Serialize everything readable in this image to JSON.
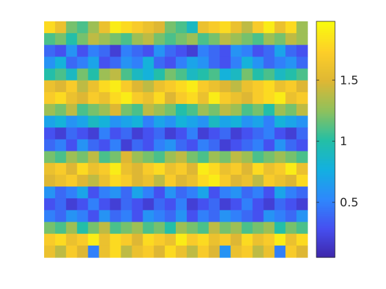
{
  "chart_data": {
    "type": "heatmap",
    "title": "",
    "xlabel": "",
    "ylabel": "",
    "axes_visible": false,
    "colormap": "parula",
    "clim": [
      0.05,
      1.98
    ],
    "colorbar": {
      "location": "right",
      "ticks": [
        0.5,
        1,
        1.5
      ],
      "tick_labels": [
        "0.5",
        "1",
        "1.5"
      ]
    },
    "grid_size": {
      "rows": 20,
      "cols": 24
    },
    "values": [
      [
        1.8,
        1.6,
        1.2,
        1.1,
        1.3,
        1.6,
        1.9,
        1.8,
        1.7,
        1.6,
        1.5,
        1.2,
        1.1,
        0.9,
        1.6,
        1.7,
        1.8,
        1.6,
        1.4,
        1.7,
        1.9,
        1.6,
        1.8,
        1.3
      ],
      [
        1.1,
        1.2,
        1.0,
        1.2,
        1.4,
        1.3,
        1.2,
        1.1,
        1.3,
        1.4,
        1.2,
        1.1,
        1.2,
        1.3,
        1.1,
        1.2,
        1.4,
        1.3,
        1.2,
        1.1,
        1.3,
        1.2,
        1.4,
        1.3
      ],
      [
        0.4,
        0.3,
        0.6,
        0.3,
        0.5,
        0.4,
        0.2,
        0.5,
        0.4,
        0.3,
        0.6,
        0.4,
        0.3,
        0.2,
        0.5,
        0.4,
        0.3,
        0.6,
        0.5,
        0.3,
        0.4,
        0.7,
        0.4,
        0.3
      ],
      [
        0.6,
        0.8,
        0.4,
        0.5,
        0.7,
        0.3,
        0.4,
        0.6,
        0.5,
        0.8,
        0.4,
        0.3,
        0.5,
        0.7,
        0.6,
        0.4,
        0.3,
        0.5,
        0.8,
        0.6,
        0.4,
        0.5,
        0.6,
        0.4
      ],
      [
        1.0,
        1.1,
        0.9,
        1.2,
        1.0,
        1.3,
        1.4,
        1.1,
        0.9,
        0.8,
        1.0,
        1.2,
        1.1,
        0.9,
        1.0,
        1.1,
        0.8,
        0.9,
        1.2,
        1.0,
        1.1,
        0.9,
        1.0,
        1.1
      ],
      [
        1.6,
        1.5,
        1.7,
        1.4,
        1.6,
        1.8,
        1.9,
        1.7,
        1.5,
        1.4,
        1.6,
        1.7,
        1.8,
        1.9,
        1.7,
        1.6,
        1.5,
        1.4,
        1.6,
        1.7,
        1.8,
        1.6,
        1.7,
        1.5
      ],
      [
        1.7,
        1.8,
        1.6,
        1.5,
        1.7,
        1.6,
        1.8,
        1.9,
        1.7,
        1.6,
        1.8,
        1.5,
        1.7,
        1.8,
        1.6,
        1.9,
        1.7,
        1.6,
        1.5,
        1.7,
        1.8,
        1.9,
        1.6,
        1.7
      ],
      [
        1.3,
        1.2,
        1.4,
        1.1,
        1.2,
        1.3,
        1.5,
        1.2,
        1.1,
        1.4,
        1.3,
        1.2,
        1.0,
        1.1,
        1.3,
        1.2,
        1.4,
        1.3,
        1.1,
        1.2,
        1.0,
        1.3,
        1.2,
        1.4
      ],
      [
        0.7,
        0.8,
        0.6,
        0.7,
        0.9,
        0.8,
        0.6,
        0.7,
        0.8,
        0.5,
        0.7,
        0.6,
        0.8,
        0.7,
        0.6,
        0.9,
        0.7,
        0.8,
        0.6,
        0.7,
        0.5,
        0.8,
        0.7,
        0.6
      ],
      [
        0.3,
        0.2,
        0.4,
        0.3,
        0.2,
        0.5,
        0.3,
        0.4,
        0.2,
        0.3,
        0.4,
        0.2,
        0.3,
        0.5,
        0.2,
        0.3,
        0.4,
        0.2,
        0.3,
        0.4,
        0.5,
        0.3,
        0.2,
        0.4
      ],
      [
        0.4,
        0.5,
        0.3,
        0.6,
        0.4,
        0.3,
        0.5,
        0.2,
        0.4,
        0.3,
        0.5,
        0.6,
        0.4,
        0.3,
        0.5,
        0.4,
        0.2,
        0.3,
        0.4,
        0.5,
        0.3,
        0.6,
        0.4,
        0.3
      ],
      [
        1.2,
        1.1,
        1.3,
        1.2,
        1.4,
        1.1,
        1.2,
        1.5,
        1.3,
        1.2,
        1.1,
        1.3,
        1.4,
        1.2,
        1.1,
        1.3,
        1.2,
        1.4,
        1.3,
        1.1,
        1.2,
        1.3,
        1.2,
        1.1
      ],
      [
        1.6,
        1.7,
        1.5,
        1.8,
        1.6,
        1.7,
        1.9,
        1.6,
        1.5,
        1.7,
        1.8,
        1.6,
        1.7,
        1.5,
        1.9,
        1.8,
        1.6,
        1.7,
        1.5,
        1.8,
        1.6,
        1.7,
        1.9,
        1.6
      ],
      [
        1.5,
        1.6,
        1.7,
        1.5,
        1.4,
        1.6,
        1.8,
        1.7,
        1.5,
        1.6,
        1.4,
        1.7,
        1.5,
        1.6,
        1.8,
        1.9,
        1.7,
        1.5,
        1.6,
        1.4,
        1.7,
        1.6,
        1.5,
        1.8
      ],
      [
        0.6,
        0.4,
        0.5,
        0.7,
        0.3,
        0.5,
        0.6,
        0.4,
        0.7,
        0.5,
        0.3,
        0.6,
        0.4,
        0.5,
        0.7,
        0.3,
        0.5,
        0.6,
        0.4,
        0.5,
        0.3,
        0.7,
        0.5,
        0.4
      ],
      [
        0.3,
        0.4,
        0.2,
        0.3,
        0.5,
        0.3,
        0.2,
        0.4,
        0.3,
        0.2,
        0.4,
        0.3,
        0.5,
        0.2,
        0.3,
        0.4,
        0.2,
        0.3,
        0.5,
        0.3,
        0.2,
        0.4,
        0.3,
        0.2
      ],
      [
        0.5,
        0.4,
        0.6,
        0.5,
        0.3,
        0.6,
        0.4,
        0.5,
        0.3,
        0.6,
        0.5,
        0.4,
        0.6,
        0.3,
        0.5,
        0.4,
        0.6,
        0.5,
        0.4,
        0.3,
        0.6,
        0.5,
        0.4,
        0.6
      ],
      [
        1.2,
        1.1,
        1.3,
        1.0,
        1.2,
        1.4,
        1.1,
        1.2,
        1.3,
        1.1,
        1.2,
        1.0,
        1.3,
        1.2,
        1.1,
        1.4,
        1.2,
        1.3,
        1.1,
        1.2,
        1.3,
        1.0,
        1.2,
        1.1
      ],
      [
        1.7,
        1.8,
        1.6,
        1.7,
        1.9,
        1.6,
        1.8,
        1.7,
        1.5,
        1.8,
        1.7,
        1.6,
        1.9,
        1.7,
        1.8,
        1.6,
        1.7,
        1.5,
        1.8,
        1.6,
        1.7,
        1.9,
        1.6,
        1.8
      ],
      [
        1.6,
        1.4,
        1.7,
        1.5,
        0.5,
        1.6,
        1.8,
        1.4,
        1.6,
        1.7,
        1.5,
        1.8,
        1.6,
        1.4,
        1.7,
        1.5,
        0.6,
        1.6,
        1.7,
        1.4,
        1.6,
        0.5,
        1.7,
        1.5
      ]
    ]
  }
}
